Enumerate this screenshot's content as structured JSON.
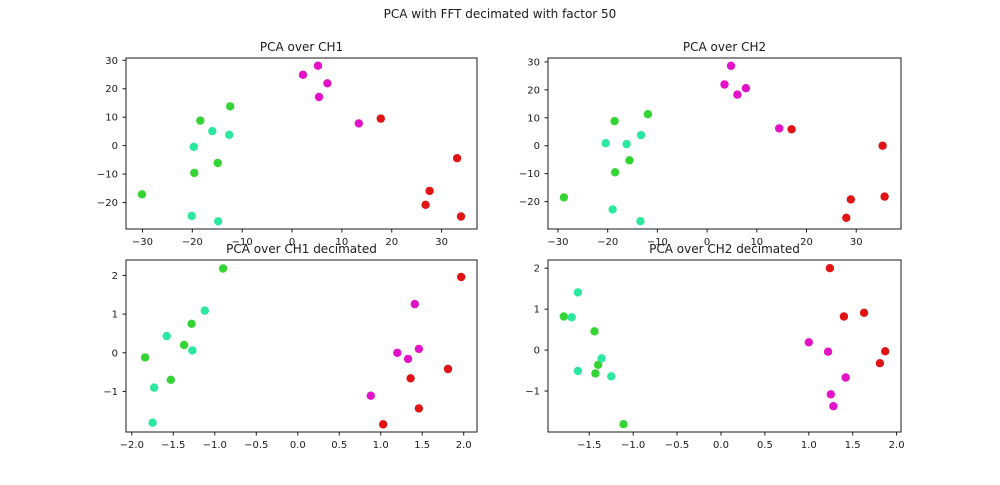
{
  "figure": {
    "title": "PCA with FFT decimated with factor 50",
    "background": "#ffffff",
    "text_color": "#1a1a1a",
    "spine_color": "#1a1a1a"
  },
  "palette": {
    "magenta": "#e312c7",
    "red": "#e01414",
    "green": "#35d435",
    "spring_green": "#2ce89f"
  },
  "chart_data": [
    {
      "id": "pca-ch1",
      "type": "scatter",
      "title": "PCA over CH1",
      "xlim": [
        -33.3,
        37.1
      ],
      "ylim": [
        -29.3,
        30.8
      ],
      "xticks": {
        "values": [
          -30,
          -20,
          -10,
          0,
          10,
          20,
          30
        ],
        "labels": [
          "−30",
          "−20",
          "−10",
          "0",
          "10",
          "20",
          "30"
        ]
      },
      "yticks": {
        "values": [
          -20,
          -10,
          0,
          10,
          20,
          30
        ],
        "labels": [
          "−20",
          "−10",
          "0",
          "10",
          "20",
          "30"
        ]
      },
      "grid": false,
      "legend": null,
      "series": [
        {
          "name": "magenta",
          "color": "#e312c7",
          "points": [
            [
              2.2,
              24.9
            ],
            [
              5.2,
              28.1
            ],
            [
              7.1,
              21.9
            ],
            [
              5.4,
              17.1
            ],
            [
              13.4,
              7.8
            ]
          ]
        },
        {
          "name": "red",
          "color": "#e01414",
          "points": [
            [
              17.8,
              9.5
            ],
            [
              33.1,
              -4.4
            ],
            [
              27.6,
              -15.9
            ],
            [
              26.8,
              -20.8
            ],
            [
              33.9,
              -24.9
            ]
          ]
        },
        {
          "name": "green",
          "color": "#35d435",
          "points": [
            [
              -12.4,
              13.8
            ],
            [
              -18.4,
              8.8
            ],
            [
              -14.9,
              -6.1
            ],
            [
              -19.6,
              -9.6
            ],
            [
              -30.1,
              -17.1
            ]
          ]
        },
        {
          "name": "spring-green",
          "color": "#2ce89f",
          "points": [
            [
              -16.0,
              5.1
            ],
            [
              -12.6,
              3.8
            ],
            [
              -19.7,
              -0.4
            ],
            [
              -20.1,
              -24.7
            ],
            [
              -14.8,
              -26.6
            ]
          ]
        }
      ]
    },
    {
      "id": "pca-ch2",
      "type": "scatter",
      "title": "PCA over CH2",
      "xlim": [
        -32.0,
        39.0
      ],
      "ylim": [
        -29.8,
        31.4
      ],
      "xticks": {
        "values": [
          -30,
          -20,
          -10,
          0,
          10,
          20,
          30
        ],
        "labels": [
          "−30",
          "−20",
          "−10",
          "0",
          "10",
          "20",
          "30"
        ]
      },
      "yticks": {
        "values": [
          -20,
          -10,
          0,
          10,
          20,
          30
        ],
        "labels": [
          "−20",
          "−10",
          "0",
          "10",
          "20",
          "30"
        ]
      },
      "grid": false,
      "legend": null,
      "series": [
        {
          "name": "magenta",
          "color": "#e312c7",
          "points": [
            [
              4.8,
              28.6
            ],
            [
              3.5,
              21.9
            ],
            [
              7.8,
              20.6
            ],
            [
              6.1,
              18.3
            ],
            [
              14.5,
              6.2
            ]
          ]
        },
        {
          "name": "red",
          "color": "#e01414",
          "points": [
            [
              17.0,
              5.9
            ],
            [
              35.3,
              0.0
            ],
            [
              28.9,
              -19.2
            ],
            [
              35.7,
              -18.2
            ],
            [
              28.0,
              -25.8
            ]
          ]
        },
        {
          "name": "green",
          "color": "#35d435",
          "points": [
            [
              -18.6,
              8.8
            ],
            [
              -11.9,
              11.3
            ],
            [
              -15.6,
              -5.2
            ],
            [
              -18.5,
              -9.5
            ],
            [
              -28.8,
              -18.5
            ]
          ]
        },
        {
          "name": "spring-green",
          "color": "#2ce89f",
          "points": [
            [
              -20.4,
              0.9
            ],
            [
              -16.2,
              0.6
            ],
            [
              -13.3,
              3.8
            ],
            [
              -19.0,
              -22.8
            ],
            [
              -13.4,
              -27.0
            ]
          ]
        }
      ]
    },
    {
      "id": "pca-ch1-decimated",
      "type": "scatter",
      "title": "PCA over CH1 decimated",
      "xlim": [
        -2.07,
        2.16
      ],
      "ylim": [
        -2.05,
        2.4
      ],
      "xticks": {
        "values": [
          -2.0,
          -1.5,
          -1.0,
          -0.5,
          0.0,
          0.5,
          1.0,
          1.5,
          2.0
        ],
        "labels": [
          "−2.0",
          "−1.5",
          "−1.0",
          "−0.5",
          "0.0",
          "0.5",
          "1.0",
          "1.5",
          "2.0"
        ]
      },
      "yticks": {
        "values": [
          -1,
          0,
          1,
          2
        ],
        "labels": [
          "−1",
          "0",
          "1",
          "2"
        ]
      },
      "grid": false,
      "legend": null,
      "series": [
        {
          "name": "magenta",
          "color": "#e312c7",
          "points": [
            [
              1.41,
              1.26
            ],
            [
              1.46,
              0.1
            ],
            [
              1.2,
              0.0
            ],
            [
              1.33,
              -0.16
            ],
            [
              0.88,
              -1.11
            ]
          ]
        },
        {
          "name": "red",
          "color": "#e01414",
          "points": [
            [
              1.97,
              1.96
            ],
            [
              1.81,
              -0.42
            ],
            [
              1.36,
              -0.66
            ],
            [
              1.46,
              -1.44
            ],
            [
              1.03,
              -1.85
            ]
          ]
        },
        {
          "name": "green",
          "color": "#35d435",
          "points": [
            [
              -0.9,
              2.18
            ],
            [
              -1.28,
              0.75
            ],
            [
              -1.37,
              0.2
            ],
            [
              -1.84,
              -0.12
            ],
            [
              -1.53,
              -0.7
            ]
          ]
        },
        {
          "name": "spring-green",
          "color": "#2ce89f",
          "points": [
            [
              -1.12,
              1.09
            ],
            [
              -1.58,
              0.43
            ],
            [
              -1.27,
              0.06
            ],
            [
              -1.73,
              -0.9
            ],
            [
              -1.75,
              -1.81
            ]
          ]
        }
      ]
    },
    {
      "id": "pca-ch2-decimated",
      "type": "scatter",
      "title": "PCA over CH2 decimated",
      "xlim": [
        -1.97,
        2.05
      ],
      "ylim": [
        -2.0,
        2.2
      ],
      "xticks": {
        "values": [
          -1.5,
          -1.0,
          -0.5,
          0.0,
          0.5,
          1.0,
          1.5,
          2.0
        ],
        "labels": [
          "−1.5",
          "−1.0",
          "−0.5",
          "0.0",
          "0.5",
          "1.0",
          "1.5",
          "2.0"
        ]
      },
      "yticks": {
        "values": [
          -1,
          0,
          1,
          2
        ],
        "labels": [
          "−1",
          "0",
          "1",
          "2"
        ]
      },
      "grid": false,
      "legend": null,
      "series": [
        {
          "name": "magenta",
          "color": "#e312c7",
          "points": [
            [
              1.0,
              0.19
            ],
            [
              1.22,
              -0.04
            ],
            [
              1.42,
              -0.67
            ],
            [
              1.25,
              -1.08
            ],
            [
              1.28,
              -1.37
            ]
          ]
        },
        {
          "name": "red",
          "color": "#e01414",
          "points": [
            [
              1.24,
              2.0
            ],
            [
              1.63,
              0.91
            ],
            [
              1.4,
              0.82
            ],
            [
              1.87,
              -0.03
            ],
            [
              1.81,
              -0.32
            ]
          ]
        },
        {
          "name": "green",
          "color": "#35d435",
          "points": [
            [
              -1.79,
              0.82
            ],
            [
              -1.44,
              0.46
            ],
            [
              -1.4,
              -0.36
            ],
            [
              -1.43,
              -0.57
            ],
            [
              -1.11,
              -1.81
            ]
          ]
        },
        {
          "name": "spring-green",
          "color": "#2ce89f",
          "points": [
            [
              -1.63,
              1.41
            ],
            [
              -1.7,
              0.8
            ],
            [
              -1.36,
              -0.2
            ],
            [
              -1.63,
              -0.51
            ],
            [
              -1.25,
              -0.64
            ]
          ]
        }
      ]
    }
  ]
}
